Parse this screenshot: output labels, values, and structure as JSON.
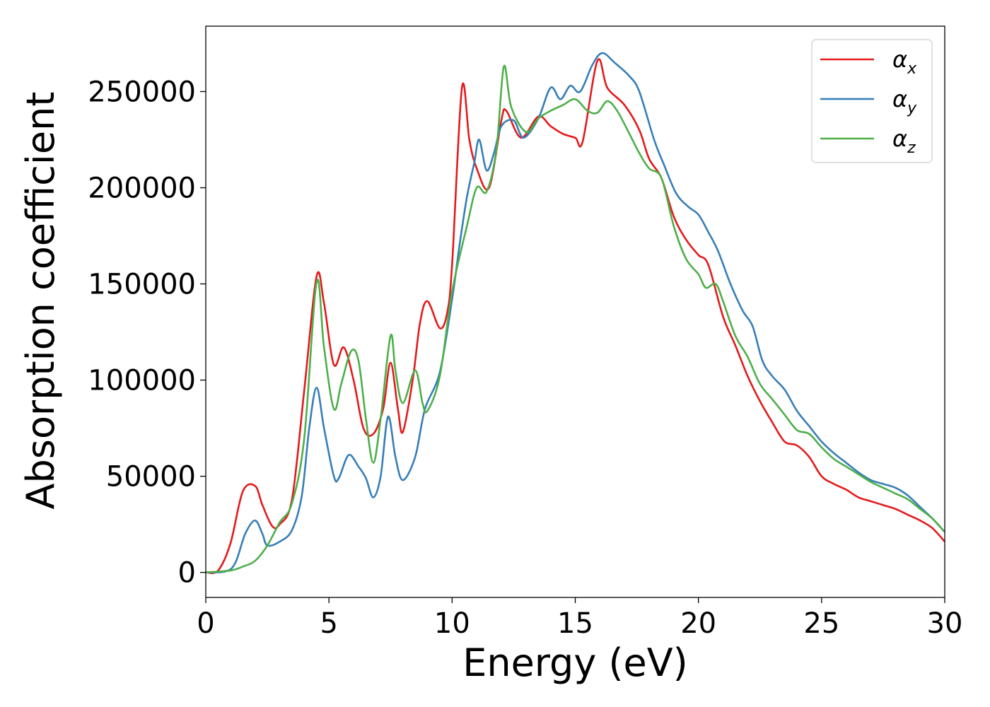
{
  "chart_data": {
    "type": "line",
    "xlabel": "Energy (eV)",
    "ylabel": "Absorption coefficient",
    "xlim": [
      0,
      30
    ],
    "ylim": [
      -13000,
      284000
    ],
    "x_ticks": [
      "0",
      "5",
      "10",
      "15",
      "20",
      "25",
      "30"
    ],
    "y_ticks": [
      "0",
      "50000",
      "100000",
      "150000",
      "200000",
      "250000"
    ],
    "grid": false,
    "legend_position": "top-right",
    "series": [
      {
        "name": "α",
        "subscript": "x",
        "color": "#e41a1c",
        "points": [
          [
            0,
            0
          ],
          [
            0.5,
            1000
          ],
          [
            1,
            15000
          ],
          [
            1.5,
            42000
          ],
          [
            2,
            45000
          ],
          [
            2.3,
            35000
          ],
          [
            2.7,
            24000
          ],
          [
            3,
            25000
          ],
          [
            3.5,
            38000
          ],
          [
            4,
            95000
          ],
          [
            4.5,
            154000
          ],
          [
            4.8,
            140000
          ],
          [
            5.2,
            108000
          ],
          [
            5.6,
            117000
          ],
          [
            6,
            100000
          ],
          [
            6.4,
            75000
          ],
          [
            6.8,
            72000
          ],
          [
            7.2,
            85000
          ],
          [
            7.5,
            109000
          ],
          [
            7.8,
            85000
          ],
          [
            8,
            73000
          ],
          [
            8.4,
            100000
          ],
          [
            8.7,
            130000
          ],
          [
            9,
            141000
          ],
          [
            9.5,
            127000
          ],
          [
            9.8,
            135000
          ],
          [
            10,
            160000
          ],
          [
            10.4,
            252000
          ],
          [
            10.7,
            225000
          ],
          [
            11,
            210000
          ],
          [
            11.5,
            200000
          ],
          [
            12,
            235000
          ],
          [
            12.2,
            240000
          ],
          [
            12.8,
            226000
          ],
          [
            13.5,
            237000
          ],
          [
            14,
            232000
          ],
          [
            14.5,
            228000
          ],
          [
            15,
            226000
          ],
          [
            15.3,
            224000
          ],
          [
            15.9,
            266000
          ],
          [
            16.3,
            252000
          ],
          [
            17,
            243000
          ],
          [
            17.6,
            230000
          ],
          [
            18,
            215000
          ],
          [
            18.5,
            205000
          ],
          [
            19,
            185000
          ],
          [
            19.5,
            173000
          ],
          [
            20,
            165000
          ],
          [
            20.4,
            160000
          ],
          [
            21,
            133000
          ],
          [
            21.5,
            118000
          ],
          [
            22,
            102000
          ],
          [
            22.5,
            89000
          ],
          [
            23,
            78000
          ],
          [
            23.5,
            68000
          ],
          [
            24,
            66000
          ],
          [
            24.5,
            60000
          ],
          [
            25,
            50000
          ],
          [
            25.5,
            46000
          ],
          [
            26,
            43000
          ],
          [
            26.5,
            39000
          ],
          [
            27,
            37000
          ],
          [
            27.5,
            35000
          ],
          [
            28,
            33000
          ],
          [
            28.5,
            30000
          ],
          [
            29,
            27000
          ],
          [
            29.5,
            23000
          ],
          [
            30,
            16000
          ]
        ]
      },
      {
        "name": "α",
        "subscript": "y",
        "color": "#377eb8",
        "points": [
          [
            0,
            0
          ],
          [
            0.8,
            500
          ],
          [
            1.2,
            5000
          ],
          [
            1.6,
            20000
          ],
          [
            2,
            27000
          ],
          [
            2.3,
            20000
          ],
          [
            2.5,
            14000
          ],
          [
            3,
            16000
          ],
          [
            3.5,
            22000
          ],
          [
            3.9,
            40000
          ],
          [
            4.2,
            75000
          ],
          [
            4.5,
            96000
          ],
          [
            4.8,
            75000
          ],
          [
            5.2,
            50000
          ],
          [
            5.4,
            49000
          ],
          [
            5.8,
            61000
          ],
          [
            6.2,
            55000
          ],
          [
            6.5,
            49000
          ],
          [
            6.8,
            39000
          ],
          [
            7.1,
            50000
          ],
          [
            7.4,
            81000
          ],
          [
            7.7,
            60000
          ],
          [
            8,
            48000
          ],
          [
            8.5,
            60000
          ],
          [
            8.9,
            85000
          ],
          [
            9.5,
            104000
          ],
          [
            10,
            142000
          ],
          [
            10.3,
            170000
          ],
          [
            10.6,
            195000
          ],
          [
            10.9,
            213000
          ],
          [
            11.1,
            225000
          ],
          [
            11.4,
            209000
          ],
          [
            11.7,
            218000
          ],
          [
            12,
            232000
          ],
          [
            12.5,
            235000
          ],
          [
            12.9,
            226000
          ],
          [
            13.5,
            236000
          ],
          [
            14,
            252000
          ],
          [
            14.4,
            246000
          ],
          [
            14.8,
            253000
          ],
          [
            15.2,
            250000
          ],
          [
            15.7,
            264000
          ],
          [
            16.1,
            270000
          ],
          [
            16.6,
            265000
          ],
          [
            17.2,
            258000
          ],
          [
            17.6,
            250000
          ],
          [
            18.2,
            225000
          ],
          [
            18.6,
            212000
          ],
          [
            19.1,
            197000
          ],
          [
            19.6,
            190000
          ],
          [
            20,
            186000
          ],
          [
            20.4,
            177000
          ],
          [
            20.8,
            167000
          ],
          [
            21.3,
            150000
          ],
          [
            21.8,
            136000
          ],
          [
            22.2,
            128000
          ],
          [
            22.6,
            110000
          ],
          [
            23,
            102000
          ],
          [
            23.5,
            95000
          ],
          [
            24,
            84000
          ],
          [
            24.5,
            76000
          ],
          [
            25,
            68000
          ],
          [
            25.5,
            62000
          ],
          [
            26,
            57000
          ],
          [
            26.5,
            52000
          ],
          [
            27,
            48000
          ],
          [
            27.5,
            46000
          ],
          [
            28,
            44000
          ],
          [
            28.5,
            40000
          ],
          [
            29,
            34000
          ],
          [
            29.5,
            28000
          ],
          [
            30,
            21000
          ]
        ]
      },
      {
        "name": "α",
        "subscript": "z",
        "color": "#4daf4a",
        "points": [
          [
            0,
            0
          ],
          [
            1,
            1000
          ],
          [
            1.5,
            3000
          ],
          [
            2,
            6000
          ],
          [
            2.5,
            14000
          ],
          [
            3,
            26000
          ],
          [
            3.5,
            36000
          ],
          [
            4,
            70000
          ],
          [
            4.5,
            151000
          ],
          [
            4.8,
            117000
          ],
          [
            5.2,
            85000
          ],
          [
            5.5,
            98000
          ],
          [
            5.9,
            115000
          ],
          [
            6.2,
            110000
          ],
          [
            6.5,
            80000
          ],
          [
            6.8,
            57000
          ],
          [
            7.1,
            80000
          ],
          [
            7.5,
            123000
          ],
          [
            7.7,
            105000
          ],
          [
            8,
            88000
          ],
          [
            8.5,
            105000
          ],
          [
            8.8,
            88000
          ],
          [
            9,
            84000
          ],
          [
            9.5,
            102000
          ],
          [
            10,
            146000
          ],
          [
            10.6,
            180000
          ],
          [
            11,
            200000
          ],
          [
            11.4,
            198000
          ],
          [
            11.8,
            220000
          ],
          [
            12.1,
            263000
          ],
          [
            12.4,
            242000
          ],
          [
            13,
            229000
          ],
          [
            13.5,
            236000
          ],
          [
            14,
            240000
          ],
          [
            14.5,
            243000
          ],
          [
            15,
            246000
          ],
          [
            15.5,
            240000
          ],
          [
            15.9,
            239000
          ],
          [
            16.3,
            245000
          ],
          [
            16.7,
            240000
          ],
          [
            17.2,
            228000
          ],
          [
            17.6,
            218000
          ],
          [
            18,
            210000
          ],
          [
            18.5,
            205000
          ],
          [
            19,
            180000
          ],
          [
            19.5,
            163000
          ],
          [
            20,
            155000
          ],
          [
            20.3,
            148000
          ],
          [
            20.7,
            150000
          ],
          [
            21,
            141000
          ],
          [
            21.5,
            123000
          ],
          [
            22,
            112000
          ],
          [
            22.5,
            98000
          ],
          [
            23,
            90000
          ],
          [
            23.5,
            82000
          ],
          [
            24,
            74000
          ],
          [
            24.5,
            72000
          ],
          [
            25,
            65000
          ],
          [
            25.5,
            59000
          ],
          [
            26,
            55000
          ],
          [
            26.5,
            51000
          ],
          [
            27,
            47000
          ],
          [
            27.5,
            44000
          ],
          [
            28,
            41000
          ],
          [
            28.5,
            38000
          ],
          [
            29,
            33000
          ],
          [
            29.5,
            28000
          ],
          [
            30,
            21000
          ]
        ]
      }
    ]
  }
}
